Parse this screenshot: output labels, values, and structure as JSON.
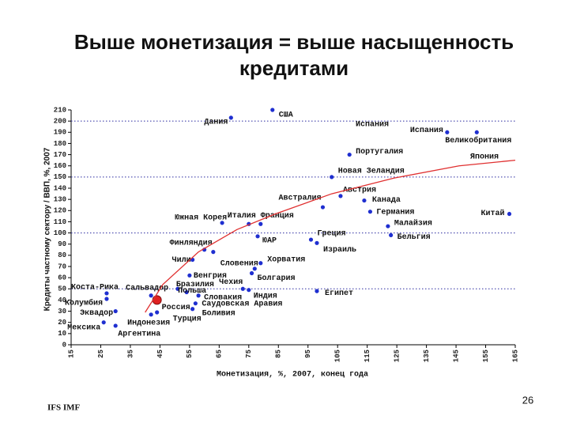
{
  "title_lines": [
    "Выше монетизация = выше насыщенность",
    "кредитами"
  ],
  "chart_data": {
    "type": "scatter",
    "x_label": "Монетизация, %, 2007, конец года",
    "y_label": "Кредиты частному сектору / ВВП, %, 2007",
    "xlim": [
      15,
      165
    ],
    "ylim": [
      0,
      210
    ],
    "xticks": [
      15,
      25,
      35,
      45,
      55,
      65,
      75,
      85,
      95,
      105,
      115,
      125,
      135,
      145,
      155,
      165
    ],
    "yticks": [
      0,
      10,
      20,
      30,
      40,
      50,
      60,
      70,
      80,
      90,
      100,
      110,
      120,
      130,
      140,
      150,
      160,
      170,
      180,
      190,
      200,
      210
    ],
    "grid_y": [
      50,
      100,
      150,
      200
    ],
    "series": [
      {
        "color": "#1f2fd0",
        "labels": [
          "США",
          "Дания",
          "Испания",
          "Великобритания",
          "Португалия",
          "Новая Зеландия",
          "Австрия",
          "Австралия",
          "Канада",
          "Германия",
          "Китай",
          "Малайзия",
          "Бельгия",
          "Греция",
          "Израиль",
          "Южная Корея",
          "Италия",
          "Франция",
          "ЮАР",
          "Финляндия",
          null,
          "Чили",
          "Словения",
          "Хорватия",
          "Болгария",
          "Венгрия",
          "Бразилия",
          "Чехия",
          "Индия",
          "Польша",
          "Сальвадор",
          "Коста-Рика",
          "Словакия",
          "Египет",
          "Колумбия",
          "Саудовская Аравия",
          "Эквадор",
          "Боливия",
          "Турция",
          "Индонезия",
          "Мексика",
          "Аргентина"
        ],
        "x": [
          83,
          69,
          142,
          152,
          109,
          103,
          106,
          100,
          114,
          116,
          163,
          122,
          123,
          96,
          98,
          66,
          75,
          79,
          78,
          60,
          63,
          56,
          79,
          77,
          76,
          55,
          51,
          73,
          75,
          54,
          42,
          27,
          58,
          98,
          27,
          57,
          30,
          56,
          44,
          42,
          26,
          30
        ],
        "values": [
          210,
          203,
          190,
          190,
          170,
          150,
          133,
          123,
          129,
          119,
          117,
          106,
          98,
          94,
          91,
          109,
          108,
          108,
          97,
          85,
          83,
          76,
          73,
          68,
          64,
          62,
          50,
          50,
          49,
          47,
          44,
          46,
          44,
          48,
          41,
          37,
          30,
          32,
          29,
          27,
          20,
          17
        ]
      },
      {
        "color": "#e02020",
        "labels": [
          "Россия"
        ],
        "x": [
          44
        ],
        "values": [
          40
        ]
      },
      {
        "color": "#e03030",
        "line": true,
        "x": [
          40,
          46,
          58,
          71,
          84,
          103,
          124,
          146,
          165
        ],
        "values": [
          29,
          54,
          83,
          103,
          117,
          135,
          149,
          160,
          165
        ]
      }
    ],
    "annotations": [
      "Испания",
      "Япония"
    ]
  },
  "footer": "IFS IMF",
  "page_number": "26"
}
